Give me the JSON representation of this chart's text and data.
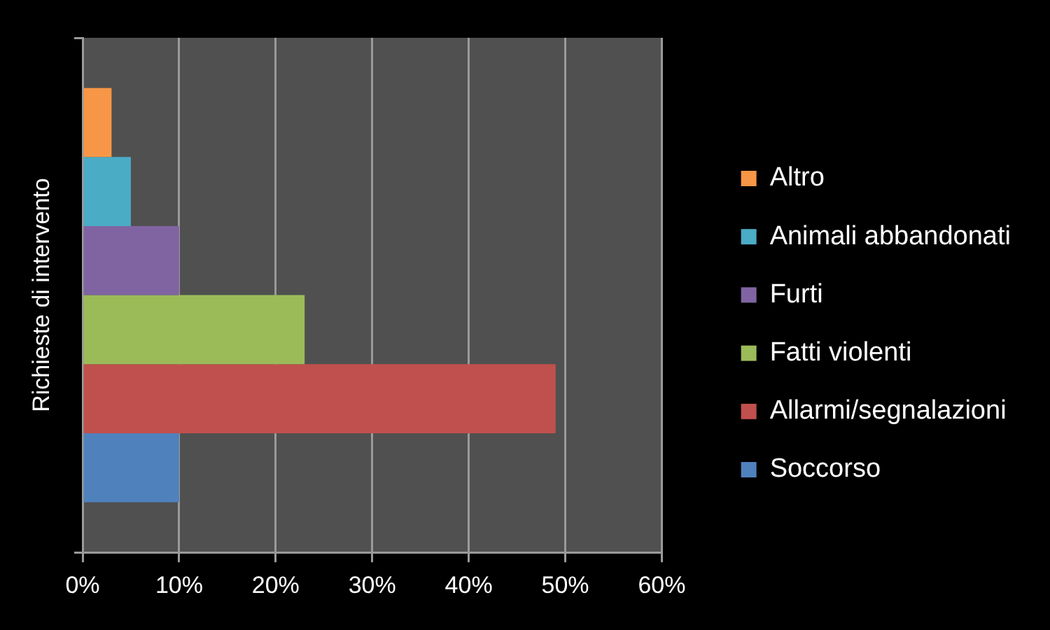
{
  "chart_data": {
    "type": "bar",
    "orientation": "horizontal",
    "ylabel": "Richieste di intervento",
    "categories": [
      null
    ],
    "series": [
      {
        "name": "Altro",
        "color": "#f79646",
        "values": [
          3
        ]
      },
      {
        "name": "Animali abbandonati",
        "color": "#4bacc6",
        "values": [
          5
        ]
      },
      {
        "name": "Furti",
        "color": "#8064a2",
        "values": [
          10
        ]
      },
      {
        "name": "Fatti violenti",
        "color": "#9bbb59",
        "values": [
          23
        ]
      },
      {
        "name": "Allarmi/segnalazioni",
        "color": "#c0504d",
        "values": [
          49
        ]
      },
      {
        "name": "Soccorso",
        "color": "#4f81bd",
        "values": [
          10
        ]
      }
    ],
    "xlim": [
      0,
      60
    ],
    "xticks": [
      {
        "value": 0,
        "label": "0%"
      },
      {
        "value": 10,
        "label": "10%"
      },
      {
        "value": 20,
        "label": "20%"
      },
      {
        "value": 30,
        "label": "30%"
      },
      {
        "value": 40,
        "label": "40%"
      },
      {
        "value": 50,
        "label": "50%"
      },
      {
        "value": 60,
        "label": "60%"
      }
    ],
    "grid": "x",
    "legend": "right"
  }
}
